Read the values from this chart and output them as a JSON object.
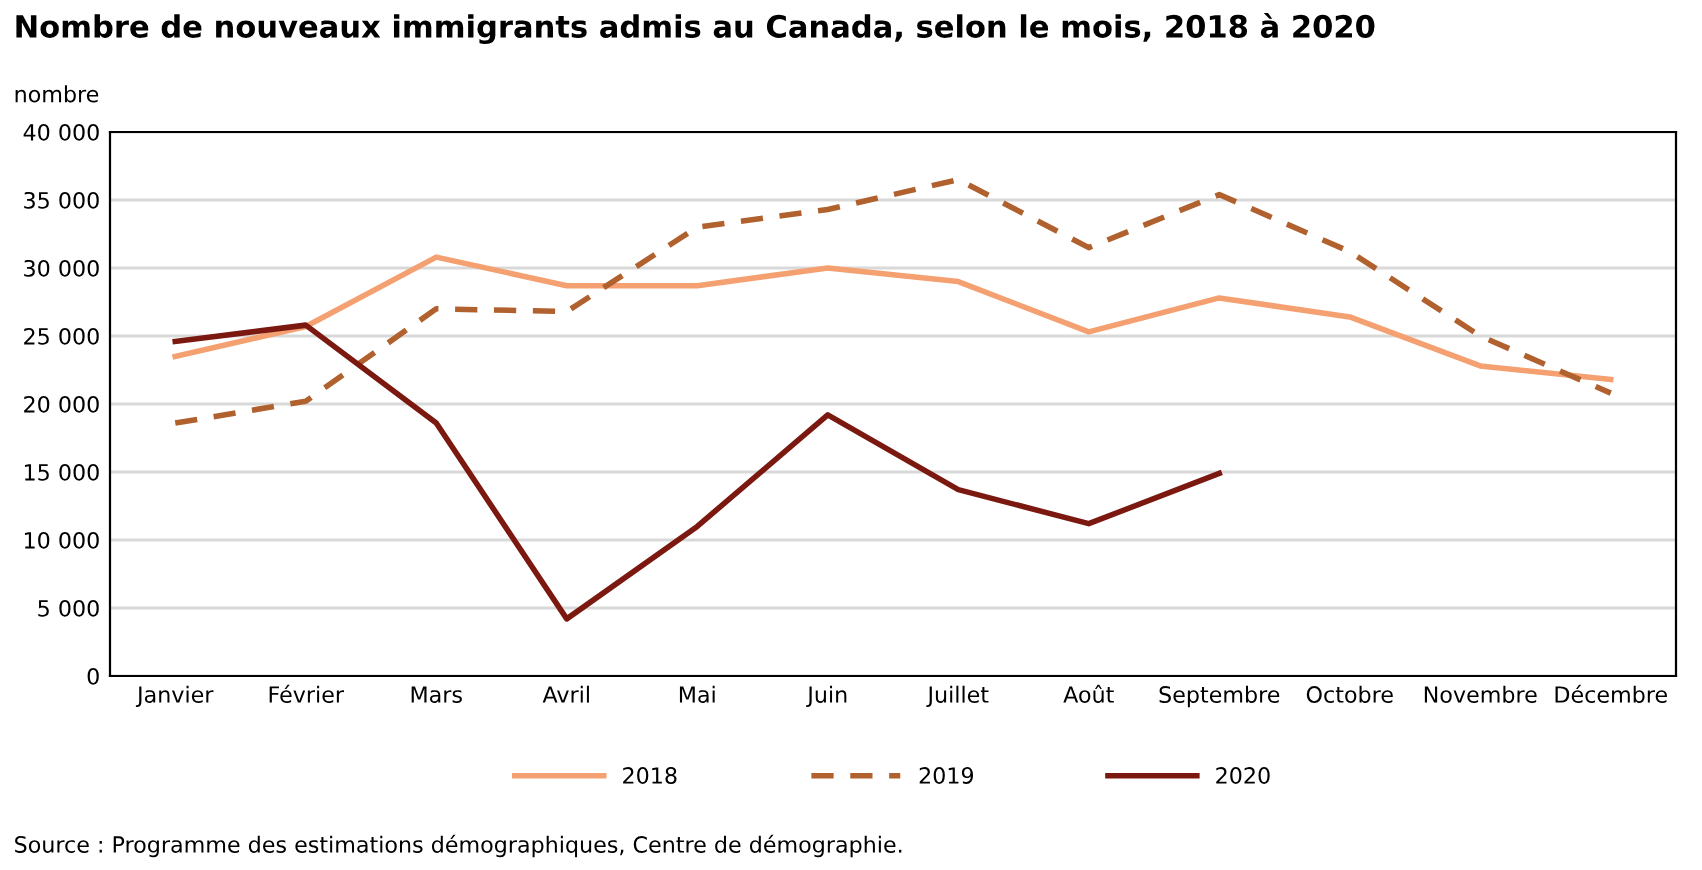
{
  "chart_data": {
    "type": "line",
    "title": "Nombre de nouveaux immigrants admis au Canada, selon le mois, 2018 à 2020",
    "ylabel": "nombre",
    "categories": [
      "Janvier",
      "Février",
      "Mars",
      "Avril",
      "Mai",
      "Juin",
      "Juillet",
      "Août",
      "Septembre",
      "Octobre",
      "Novembre",
      "Décembre"
    ],
    "series": [
      {
        "name": "2018",
        "color": "#f4a070",
        "line_style": "solid",
        "values": [
          23500,
          25700,
          30800,
          28700,
          28700,
          30000,
          29000,
          25300,
          27800,
          26400,
          22800,
          21800
        ]
      },
      {
        "name": "2019",
        "color": "#b0612e",
        "line_style": "dashed",
        "values": [
          18600,
          20200,
          27000,
          26800,
          33000,
          34300,
          36500,
          31500,
          35400,
          31200,
          25000,
          20800
        ]
      },
      {
        "name": "2020",
        "color": "#7b1810",
        "line_style": "solid",
        "values": [
          24600,
          25800,
          18600,
          4200,
          11000,
          19200,
          13700,
          11200,
          14900,
          null,
          null,
          null
        ]
      }
    ],
    "ylim": [
      0,
      40000
    ],
    "yticks": [
      0,
      {
        "value": 5000,
        "label": "5 000"
      },
      {
        "value": 10000,
        "label": "10 000"
      },
      {
        "value": 15000,
        "label": "15 000"
      },
      {
        "value": 20000,
        "label": "20 000"
      },
      {
        "value": 25000,
        "label": "25 000"
      },
      {
        "value": 30000,
        "label": "30 000"
      },
      {
        "value": 35000,
        "label": "35 000"
      },
      {
        "value": 40000,
        "label": "40 000"
      }
    ],
    "grid": "y",
    "legend": "bottom",
    "marker": "none",
    "annotations": [
      "Source : Programme des estimations démographiques, Centre de démographie."
    ]
  }
}
